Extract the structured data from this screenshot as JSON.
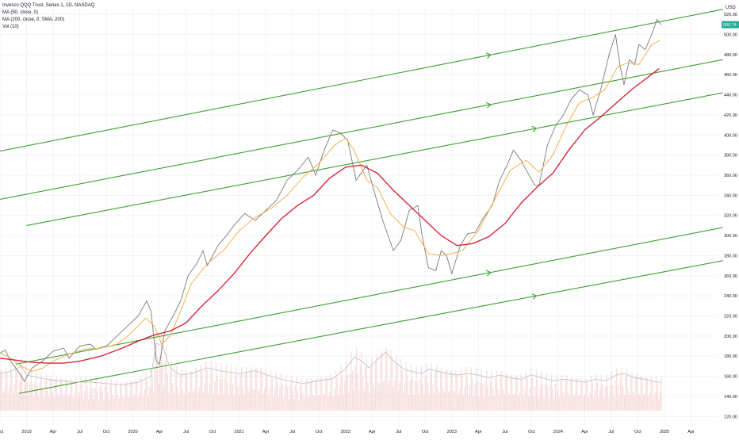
{
  "legend": {
    "title": "Invesco QQQ Trust, Series 1, 1D, NASDAQ",
    "ma50": "MA (50, close, 0)",
    "ma200": "MA (200, close, 0, SMA, 200)",
    "vol": "Vol (10)"
  },
  "price_axis": {
    "currency": "USD",
    "last_price_label": "509.74"
  },
  "colors": {
    "price": "#7a7a7a",
    "ma50": "#f5b04c",
    "ma200": "#d7263d",
    "channel": "#3aa12c",
    "volume": "#c8c8c8",
    "volume_bars": "#f3c6c6",
    "grid": "#f0f3fa",
    "last_price_bg": "#22ab94"
  },
  "chart_data": {
    "type": "line",
    "title": "Invesco QQQ Trust, Series 1, 1D, NASDAQ",
    "x_ticks": [
      "Oct",
      "2019",
      "Apr",
      "Jul",
      "Oct",
      "2020",
      "Apr",
      "Jul",
      "Oct",
      "2021",
      "Apr",
      "Jul",
      "Oct",
      "2022",
      "Apr",
      "Jul",
      "Oct",
      "2023",
      "Apr",
      "Jul",
      "Oct",
      "2024",
      "Apr",
      "Jul",
      "Oct",
      "2025",
      "Apr"
    ],
    "x_tick_dates": [
      2018.75,
      2019.0,
      2019.25,
      2019.5,
      2019.75,
      2020.0,
      2020.25,
      2020.5,
      2020.75,
      2021.0,
      2021.25,
      2021.5,
      2021.75,
      2022.0,
      2022.25,
      2022.5,
      2022.75,
      2023.0,
      2023.25,
      2023.5,
      2023.75,
      2024.0,
      2024.25,
      2024.5,
      2024.75,
      2025.0,
      2025.25
    ],
    "y_ticks": [
      120,
      140,
      160,
      180,
      200,
      220,
      240,
      260,
      280,
      300,
      320,
      340,
      360,
      380,
      400,
      420,
      440,
      460,
      480,
      500,
      520
    ],
    "ylim": [
      110,
      528
    ],
    "xlim": [
      2018.75,
      2025.5
    ],
    "grid": true,
    "series": [
      {
        "name": "MA (50, close, 0)",
        "points": [
          [
            2018.75,
            183
          ],
          [
            2018.85,
            178
          ],
          [
            2018.95,
            170
          ],
          [
            2019.05,
            165
          ],
          [
            2019.15,
            168
          ],
          [
            2019.25,
            175
          ],
          [
            2019.4,
            182
          ],
          [
            2019.55,
            187
          ],
          [
            2019.7,
            188
          ],
          [
            2019.85,
            192
          ],
          [
            2019.95,
            200
          ],
          [
            2020.05,
            210
          ],
          [
            2020.12,
            218
          ],
          [
            2020.2,
            210
          ],
          [
            2020.27,
            192
          ],
          [
            2020.35,
            200
          ],
          [
            2020.45,
            225
          ],
          [
            2020.55,
            252
          ],
          [
            2020.7,
            272
          ],
          [
            2020.85,
            285
          ],
          [
            2021.0,
            305
          ],
          [
            2021.15,
            318
          ],
          [
            2021.3,
            327
          ],
          [
            2021.45,
            340
          ],
          [
            2021.6,
            358
          ],
          [
            2021.75,
            372
          ],
          [
            2021.9,
            390
          ],
          [
            2022.0,
            397
          ],
          [
            2022.08,
            385
          ],
          [
            2022.2,
            355
          ],
          [
            2022.3,
            348
          ],
          [
            2022.42,
            322
          ],
          [
            2022.55,
            308
          ],
          [
            2022.65,
            305
          ],
          [
            2022.78,
            282
          ],
          [
            2022.9,
            280
          ],
          [
            2023.0,
            282
          ],
          [
            2023.1,
            285
          ],
          [
            2023.25,
            305
          ],
          [
            2023.4,
            335
          ],
          [
            2023.55,
            365
          ],
          [
            2023.7,
            375
          ],
          [
            2023.82,
            363
          ],
          [
            2023.95,
            380
          ],
          [
            2024.08,
            410
          ],
          [
            2024.2,
            432
          ],
          [
            2024.32,
            437
          ],
          [
            2024.44,
            445
          ],
          [
            2024.56,
            468
          ],
          [
            2024.66,
            472
          ],
          [
            2024.76,
            470
          ],
          [
            2024.88,
            490
          ],
          [
            2024.96,
            494
          ]
        ]
      },
      {
        "name": "MA (200, close, 0, SMA, 200)",
        "points": [
          [
            2018.75,
            178
          ],
          [
            2018.9,
            176
          ],
          [
            2019.05,
            174
          ],
          [
            2019.2,
            173
          ],
          [
            2019.35,
            173
          ],
          [
            2019.5,
            175
          ],
          [
            2019.7,
            180
          ],
          [
            2019.9,
            188
          ],
          [
            2020.05,
            195
          ],
          [
            2020.2,
            201
          ],
          [
            2020.35,
            205
          ],
          [
            2020.5,
            213
          ],
          [
            2020.65,
            230
          ],
          [
            2020.8,
            245
          ],
          [
            2020.95,
            262
          ],
          [
            2021.1,
            282
          ],
          [
            2021.25,
            300
          ],
          [
            2021.4,
            317
          ],
          [
            2021.55,
            330
          ],
          [
            2021.7,
            340
          ],
          [
            2021.85,
            357
          ],
          [
            2022.0,
            368
          ],
          [
            2022.15,
            370
          ],
          [
            2022.3,
            362
          ],
          [
            2022.45,
            345
          ],
          [
            2022.6,
            330
          ],
          [
            2022.75,
            315
          ],
          [
            2022.9,
            300
          ],
          [
            2023.05,
            290
          ],
          [
            2023.2,
            292
          ],
          [
            2023.35,
            299
          ],
          [
            2023.5,
            312
          ],
          [
            2023.65,
            332
          ],
          [
            2023.8,
            348
          ],
          [
            2023.95,
            362
          ],
          [
            2024.1,
            385
          ],
          [
            2024.25,
            405
          ],
          [
            2024.4,
            418
          ],
          [
            2024.55,
            432
          ],
          [
            2024.7,
            446
          ],
          [
            2024.85,
            458
          ],
          [
            2024.95,
            466
          ]
        ]
      },
      {
        "name": "Price",
        "points": [
          [
            2018.75,
            183
          ],
          [
            2018.8,
            186
          ],
          [
            2018.85,
            175
          ],
          [
            2018.92,
            165
          ],
          [
            2018.98,
            155
          ],
          [
            2019.05,
            168
          ],
          [
            2019.15,
            175
          ],
          [
            2019.25,
            185
          ],
          [
            2019.35,
            188
          ],
          [
            2019.4,
            178
          ],
          [
            2019.5,
            190
          ],
          [
            2019.6,
            192
          ],
          [
            2019.65,
            187
          ],
          [
            2019.75,
            190
          ],
          [
            2019.85,
            200
          ],
          [
            2019.95,
            210
          ],
          [
            2020.05,
            220
          ],
          [
            2020.13,
            235
          ],
          [
            2020.17,
            225
          ],
          [
            2020.22,
            175
          ],
          [
            2020.25,
            172
          ],
          [
            2020.3,
            205
          ],
          [
            2020.38,
            220
          ],
          [
            2020.45,
            235
          ],
          [
            2020.52,
            260
          ],
          [
            2020.6,
            272
          ],
          [
            2020.66,
            285
          ],
          [
            2020.7,
            270
          ],
          [
            2020.8,
            290
          ],
          [
            2020.88,
            300
          ],
          [
            2020.95,
            310
          ],
          [
            2021.05,
            322
          ],
          [
            2021.15,
            315
          ],
          [
            2021.25,
            325
          ],
          [
            2021.35,
            335
          ],
          [
            2021.45,
            355
          ],
          [
            2021.55,
            365
          ],
          [
            2021.65,
            378
          ],
          [
            2021.72,
            360
          ],
          [
            2021.8,
            385
          ],
          [
            2021.88,
            405
          ],
          [
            2021.95,
            402
          ],
          [
            2022.02,
            395
          ],
          [
            2022.1,
            355
          ],
          [
            2022.2,
            370
          ],
          [
            2022.28,
            340
          ],
          [
            2022.35,
            315
          ],
          [
            2022.45,
            285
          ],
          [
            2022.52,
            295
          ],
          [
            2022.6,
            325
          ],
          [
            2022.68,
            330
          ],
          [
            2022.72,
            300
          ],
          [
            2022.78,
            268
          ],
          [
            2022.85,
            265
          ],
          [
            2022.9,
            285
          ],
          [
            2022.95,
            280
          ],
          [
            2023.0,
            262
          ],
          [
            2023.08,
            290
          ],
          [
            2023.15,
            302
          ],
          [
            2023.22,
            303
          ],
          [
            2023.3,
            318
          ],
          [
            2023.38,
            330
          ],
          [
            2023.45,
            355
          ],
          [
            2023.52,
            370
          ],
          [
            2023.58,
            385
          ],
          [
            2023.65,
            375
          ],
          [
            2023.7,
            365
          ],
          [
            2023.78,
            350
          ],
          [
            2023.82,
            350
          ],
          [
            2023.9,
            390
          ],
          [
            2023.98,
            410
          ],
          [
            2024.05,
            420
          ],
          [
            2024.12,
            435
          ],
          [
            2024.2,
            445
          ],
          [
            2024.28,
            440
          ],
          [
            2024.33,
            420
          ],
          [
            2024.4,
            445
          ],
          [
            2024.48,
            480
          ],
          [
            2024.54,
            500
          ],
          [
            2024.58,
            470
          ],
          [
            2024.62,
            450
          ],
          [
            2024.67,
            475
          ],
          [
            2024.72,
            470
          ],
          [
            2024.76,
            490
          ],
          [
            2024.82,
            485
          ],
          [
            2024.88,
            500
          ],
          [
            2024.93,
            515
          ],
          [
            2024.97,
            509.74
          ]
        ]
      },
      {
        "name": "Vol (10)",
        "axis": "volume",
        "points": [
          [
            2018.75,
            52
          ],
          [
            2018.85,
            55
          ],
          [
            2018.95,
            62
          ],
          [
            2019.0,
            50
          ],
          [
            2019.15,
            45
          ],
          [
            2019.3,
            42
          ],
          [
            2019.45,
            40
          ],
          [
            2019.6,
            40
          ],
          [
            2019.75,
            38
          ],
          [
            2019.9,
            36
          ],
          [
            2020.05,
            40
          ],
          [
            2020.17,
            48
          ],
          [
            2020.22,
            95
          ],
          [
            2020.28,
            90
          ],
          [
            2020.35,
            60
          ],
          [
            2020.45,
            50
          ],
          [
            2020.55,
            52
          ],
          [
            2020.7,
            60
          ],
          [
            2020.85,
            55
          ],
          [
            2021.0,
            52
          ],
          [
            2021.15,
            56
          ],
          [
            2021.3,
            48
          ],
          [
            2021.45,
            42
          ],
          [
            2021.6,
            38
          ],
          [
            2021.75,
            42
          ],
          [
            2021.88,
            45
          ],
          [
            2022.0,
            58
          ],
          [
            2022.08,
            75
          ],
          [
            2022.15,
            70
          ],
          [
            2022.22,
            60
          ],
          [
            2022.3,
            72
          ],
          [
            2022.38,
            82
          ],
          [
            2022.45,
            70
          ],
          [
            2022.55,
            58
          ],
          [
            2022.62,
            55
          ],
          [
            2022.72,
            52
          ],
          [
            2022.78,
            58
          ],
          [
            2022.85,
            56
          ],
          [
            2022.95,
            52
          ],
          [
            2023.05,
            50
          ],
          [
            2023.15,
            52
          ],
          [
            2023.25,
            50
          ],
          [
            2023.35,
            46
          ],
          [
            2023.45,
            50
          ],
          [
            2023.55,
            46
          ],
          [
            2023.65,
            44
          ],
          [
            2023.75,
            50
          ],
          [
            2023.85,
            46
          ],
          [
            2023.95,
            42
          ],
          [
            2024.05,
            44
          ],
          [
            2024.15,
            42
          ],
          [
            2024.25,
            40
          ],
          [
            2024.35,
            44
          ],
          [
            2024.45,
            42
          ],
          [
            2024.55,
            50
          ],
          [
            2024.62,
            52
          ],
          [
            2024.72,
            46
          ],
          [
            2024.82,
            44
          ],
          [
            2024.92,
            40
          ],
          [
            2024.97,
            40
          ]
        ]
      }
    ],
    "channel_lines": [
      {
        "x": [
          2018.7,
          2025.55
        ],
        "y": [
          383,
          525
        ],
        "arrows_at": [
          2023.35
        ]
      },
      {
        "x": [
          2018.7,
          2025.55
        ],
        "y": [
          335,
          475
        ],
        "arrows_at": [
          2023.35
        ]
      },
      {
        "x": [
          2019.0,
          2025.55
        ],
        "y": [
          310,
          442
        ],
        "arrows_at": [
          2023.78
        ]
      },
      {
        "x": [
          2018.9,
          2025.55
        ],
        "y": [
          172,
          308
        ],
        "arrows_at": [
          2023.35
        ]
      },
      {
        "x": [
          2018.93,
          2025.55
        ],
        "y": [
          143,
          275
        ],
        "arrows_at": [
          2023.78
        ]
      }
    ],
    "last_price": 509.74
  }
}
